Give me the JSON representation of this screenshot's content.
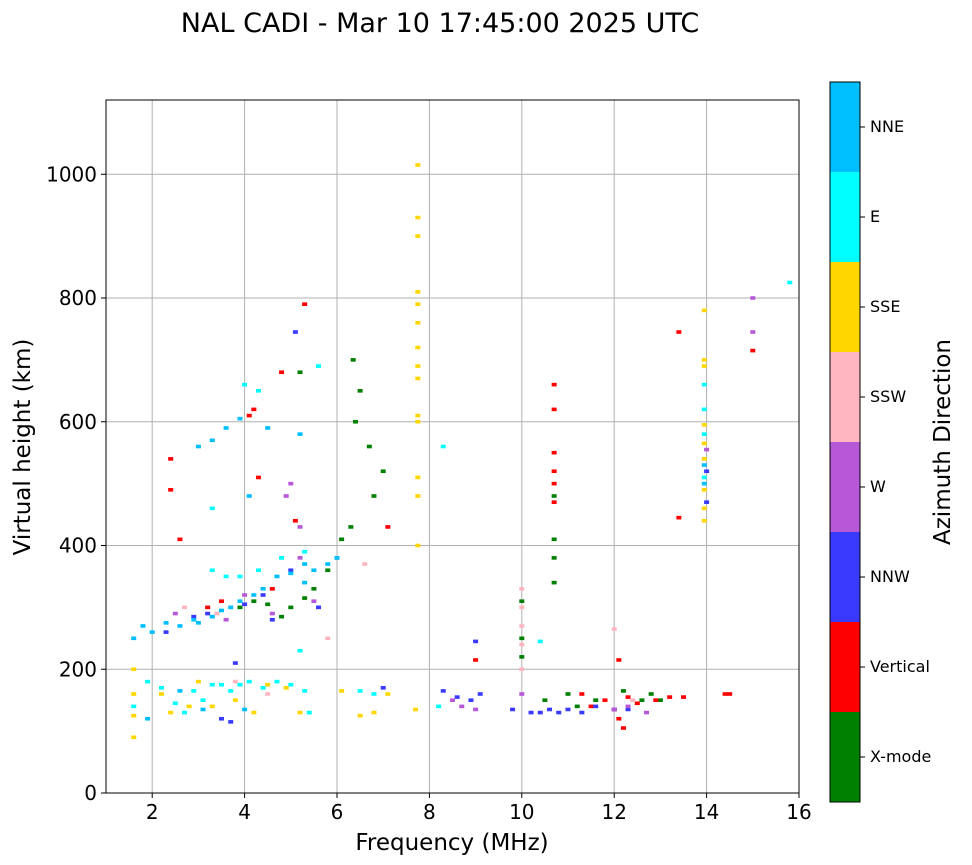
{
  "chart_data": {
    "type": "scatter",
    "title": "NAL CADI - Mar 10 17:45:00 2025 UTC",
    "xlabel": "Frequency (MHz)",
    "ylabel": "Virtual height (km)",
    "xlim": [
      1,
      16
    ],
    "ylim": [
      0,
      1120
    ],
    "xticks": [
      2,
      4,
      6,
      8,
      10,
      12,
      14,
      16
    ],
    "yticks": [
      0,
      200,
      400,
      600,
      800,
      1000
    ],
    "grid": true,
    "colorbar": {
      "label": "Azimuth Direction",
      "categories": [
        "X-mode",
        "Vertical",
        "NNW",
        "W",
        "SSW",
        "SSE",
        "E",
        "NNE"
      ],
      "colors": [
        "#008000",
        "#ff0000",
        "#3a3aff",
        "#b658d8",
        "#ffb6c1",
        "#ffd700",
        "#00ffff",
        "#00bfff"
      ]
    },
    "series": [
      {
        "name": "X-mode",
        "points": [
          [
            4.2,
            310
          ],
          [
            4.5,
            305
          ],
          [
            5.0,
            300
          ],
          [
            5.3,
            315
          ],
          [
            5.5,
            330
          ],
          [
            5.8,
            360
          ],
          [
            6.0,
            380
          ],
          [
            6.1,
            410
          ],
          [
            6.3,
            430
          ],
          [
            6.4,
            600
          ],
          [
            6.35,
            700
          ],
          [
            6.5,
            650
          ],
          [
            6.7,
            560
          ],
          [
            6.8,
            480
          ],
          [
            7.0,
            520
          ],
          [
            3.9,
            300
          ],
          [
            4.8,
            285
          ],
          [
            5.2,
            680
          ],
          [
            10.0,
            310
          ],
          [
            10.0,
            250
          ],
          [
            10.0,
            220
          ],
          [
            10.7,
            340
          ],
          [
            10.7,
            380
          ],
          [
            10.7,
            410
          ],
          [
            10.7,
            480
          ],
          [
            11.2,
            140
          ],
          [
            11.6,
            150
          ],
          [
            12.2,
            165
          ],
          [
            12.6,
            150
          ],
          [
            12.8,
            160
          ],
          [
            13.0,
            150
          ],
          [
            11.0,
            160
          ],
          [
            10.5,
            150
          ]
        ]
      },
      {
        "name": "Vertical",
        "points": [
          [
            2.4,
            540
          ],
          [
            2.4,
            490
          ],
          [
            2.6,
            410
          ],
          [
            3.2,
            300
          ],
          [
            3.5,
            310
          ],
          [
            4.1,
            610
          ],
          [
            4.2,
            620
          ],
          [
            4.3,
            510
          ],
          [
            4.6,
            330
          ],
          [
            4.8,
            680
          ],
          [
            5.1,
            440
          ],
          [
            5.3,
            790
          ],
          [
            7.1,
            430
          ],
          [
            9.0,
            215
          ],
          [
            10.7,
            660
          ],
          [
            10.7,
            620
          ],
          [
            10.7,
            550
          ],
          [
            10.7,
            520
          ],
          [
            10.7,
            500
          ],
          [
            10.7,
            470
          ],
          [
            11.3,
            160
          ],
          [
            11.5,
            140
          ],
          [
            11.8,
            150
          ],
          [
            12.0,
            135
          ],
          [
            12.1,
            120
          ],
          [
            12.2,
            105
          ],
          [
            12.3,
            155
          ],
          [
            12.5,
            145
          ],
          [
            12.9,
            150
          ],
          [
            13.2,
            155
          ],
          [
            13.5,
            155
          ],
          [
            14.4,
            160
          ],
          [
            14.5,
            160
          ],
          [
            13.4,
            745
          ],
          [
            13.4,
            445
          ],
          [
            15.0,
            715
          ],
          [
            12.1,
            215
          ]
        ]
      },
      {
        "name": "NNW",
        "points": [
          [
            2.3,
            260
          ],
          [
            2.9,
            285
          ],
          [
            3.2,
            290
          ],
          [
            3.5,
            120
          ],
          [
            3.7,
            115
          ],
          [
            3.8,
            210
          ],
          [
            4.0,
            305
          ],
          [
            4.4,
            320
          ],
          [
            4.6,
            280
          ],
          [
            5.0,
            360
          ],
          [
            5.1,
            745
          ],
          [
            5.6,
            300
          ],
          [
            7.0,
            170
          ],
          [
            8.3,
            165
          ],
          [
            8.6,
            155
          ],
          [
            8.9,
            150
          ],
          [
            9.1,
            160
          ],
          [
            9.0,
            245
          ],
          [
            9.8,
            135
          ],
          [
            10.2,
            130
          ],
          [
            10.4,
            130
          ],
          [
            10.6,
            135
          ],
          [
            10.8,
            130
          ],
          [
            11.0,
            135
          ],
          [
            11.3,
            130
          ],
          [
            11.6,
            140
          ],
          [
            12.0,
            135
          ],
          [
            12.3,
            135
          ],
          [
            14.0,
            520
          ],
          [
            14.0,
            470
          ]
        ]
      },
      {
        "name": "W",
        "points": [
          [
            2.5,
            290
          ],
          [
            3.6,
            280
          ],
          [
            4.0,
            320
          ],
          [
            4.6,
            290
          ],
          [
            4.9,
            480
          ],
          [
            5.0,
            500
          ],
          [
            5.2,
            380
          ],
          [
            5.2,
            430
          ],
          [
            5.5,
            310
          ],
          [
            8.5,
            150
          ],
          [
            8.7,
            140
          ],
          [
            9.0,
            135
          ],
          [
            10.0,
            160
          ],
          [
            12.0,
            135
          ],
          [
            12.3,
            140
          ],
          [
            12.7,
            130
          ],
          [
            14.0,
            555
          ],
          [
            15.0,
            745
          ],
          [
            15.0,
            800
          ]
        ]
      },
      {
        "name": "SSW",
        "points": [
          [
            2.7,
            300
          ],
          [
            3.4,
            290
          ],
          [
            3.8,
            180
          ],
          [
            4.5,
            160
          ],
          [
            5.8,
            250
          ],
          [
            6.6,
            370
          ],
          [
            10.0,
            330
          ],
          [
            10.0,
            300
          ],
          [
            10.0,
            270
          ],
          [
            10.0,
            240
          ],
          [
            10.0,
            200
          ],
          [
            12.0,
            265
          ],
          [
            12.4,
            150
          ]
        ]
      },
      {
        "name": "SSE",
        "points": [
          [
            1.6,
            160
          ],
          [
            1.6,
            125
          ],
          [
            1.6,
            90
          ],
          [
            1.6,
            200
          ],
          [
            2.2,
            160
          ],
          [
            2.4,
            130
          ],
          [
            2.8,
            140
          ],
          [
            3.0,
            180
          ],
          [
            3.3,
            140
          ],
          [
            3.8,
            150
          ],
          [
            4.2,
            130
          ],
          [
            4.5,
            175
          ],
          [
            4.9,
            170
          ],
          [
            5.2,
            130
          ],
          [
            6.1,
            165
          ],
          [
            6.5,
            125
          ],
          [
            6.8,
            130
          ],
          [
            7.1,
            160
          ],
          [
            7.7,
            135
          ],
          [
            7.75,
            930
          ],
          [
            7.75,
            900
          ],
          [
            7.75,
            810
          ],
          [
            7.75,
            790
          ],
          [
            7.75,
            760
          ],
          [
            7.75,
            720
          ],
          [
            7.75,
            690
          ],
          [
            7.75,
            670
          ],
          [
            7.75,
            610
          ],
          [
            7.75,
            600
          ],
          [
            7.75,
            510
          ],
          [
            7.75,
            480
          ],
          [
            7.75,
            400
          ],
          [
            7.75,
            1015
          ],
          [
            13.95,
            700
          ],
          [
            13.95,
            690
          ],
          [
            13.95,
            780
          ],
          [
            13.95,
            595
          ],
          [
            13.95,
            565
          ],
          [
            13.95,
            540
          ],
          [
            13.95,
            490
          ],
          [
            13.95,
            460
          ],
          [
            13.95,
            440
          ]
        ]
      },
      {
        "name": "E",
        "points": [
          [
            1.6,
            140
          ],
          [
            1.9,
            180
          ],
          [
            2.2,
            170
          ],
          [
            2.5,
            145
          ],
          [
            2.7,
            130
          ],
          [
            2.9,
            165
          ],
          [
            3.1,
            150
          ],
          [
            3.3,
            175
          ],
          [
            3.5,
            175
          ],
          [
            3.7,
            165
          ],
          [
            3.9,
            175
          ],
          [
            4.1,
            180
          ],
          [
            4.4,
            170
          ],
          [
            4.7,
            180
          ],
          [
            5.0,
            175
          ],
          [
            5.2,
            230
          ],
          [
            5.3,
            165
          ],
          [
            5.4,
            130
          ],
          [
            6.5,
            165
          ],
          [
            6.8,
            160
          ],
          [
            3.3,
            360
          ],
          [
            3.6,
            350
          ],
          [
            3.9,
            350
          ],
          [
            4.3,
            360
          ],
          [
            4.8,
            380
          ],
          [
            5.3,
            390
          ],
          [
            5.6,
            690
          ],
          [
            4.3,
            650
          ],
          [
            4.0,
            660
          ],
          [
            3.3,
            460
          ],
          [
            8.2,
            140
          ],
          [
            8.3,
            560
          ],
          [
            10.4,
            245
          ],
          [
            13.95,
            660
          ],
          [
            13.95,
            620
          ],
          [
            13.95,
            580
          ],
          [
            13.95,
            510
          ],
          [
            15.8,
            825
          ]
        ]
      },
      {
        "name": "NNE",
        "points": [
          [
            1.8,
            270
          ],
          [
            2.0,
            260
          ],
          [
            2.3,
            275
          ],
          [
            2.6,
            270
          ],
          [
            2.9,
            280
          ],
          [
            3.0,
            275
          ],
          [
            3.3,
            285
          ],
          [
            3.5,
            295
          ],
          [
            3.7,
            300
          ],
          [
            3.9,
            310
          ],
          [
            4.2,
            320
          ],
          [
            4.4,
            330
          ],
          [
            4.7,
            350
          ],
          [
            5.0,
            355
          ],
          [
            5.3,
            340
          ],
          [
            5.5,
            360
          ],
          [
            5.8,
            370
          ],
          [
            6.0,
            380
          ],
          [
            3.0,
            560
          ],
          [
            3.3,
            570
          ],
          [
            3.6,
            590
          ],
          [
            3.9,
            605
          ],
          [
            4.1,
            480
          ],
          [
            4.5,
            590
          ],
          [
            5.2,
            580
          ],
          [
            5.3,
            370
          ],
          [
            1.6,
            250
          ],
          [
            1.9,
            120
          ],
          [
            2.6,
            165
          ],
          [
            3.1,
            135
          ],
          [
            4.0,
            135
          ],
          [
            13.95,
            530
          ],
          [
            13.95,
            500
          ]
        ]
      }
    ]
  }
}
